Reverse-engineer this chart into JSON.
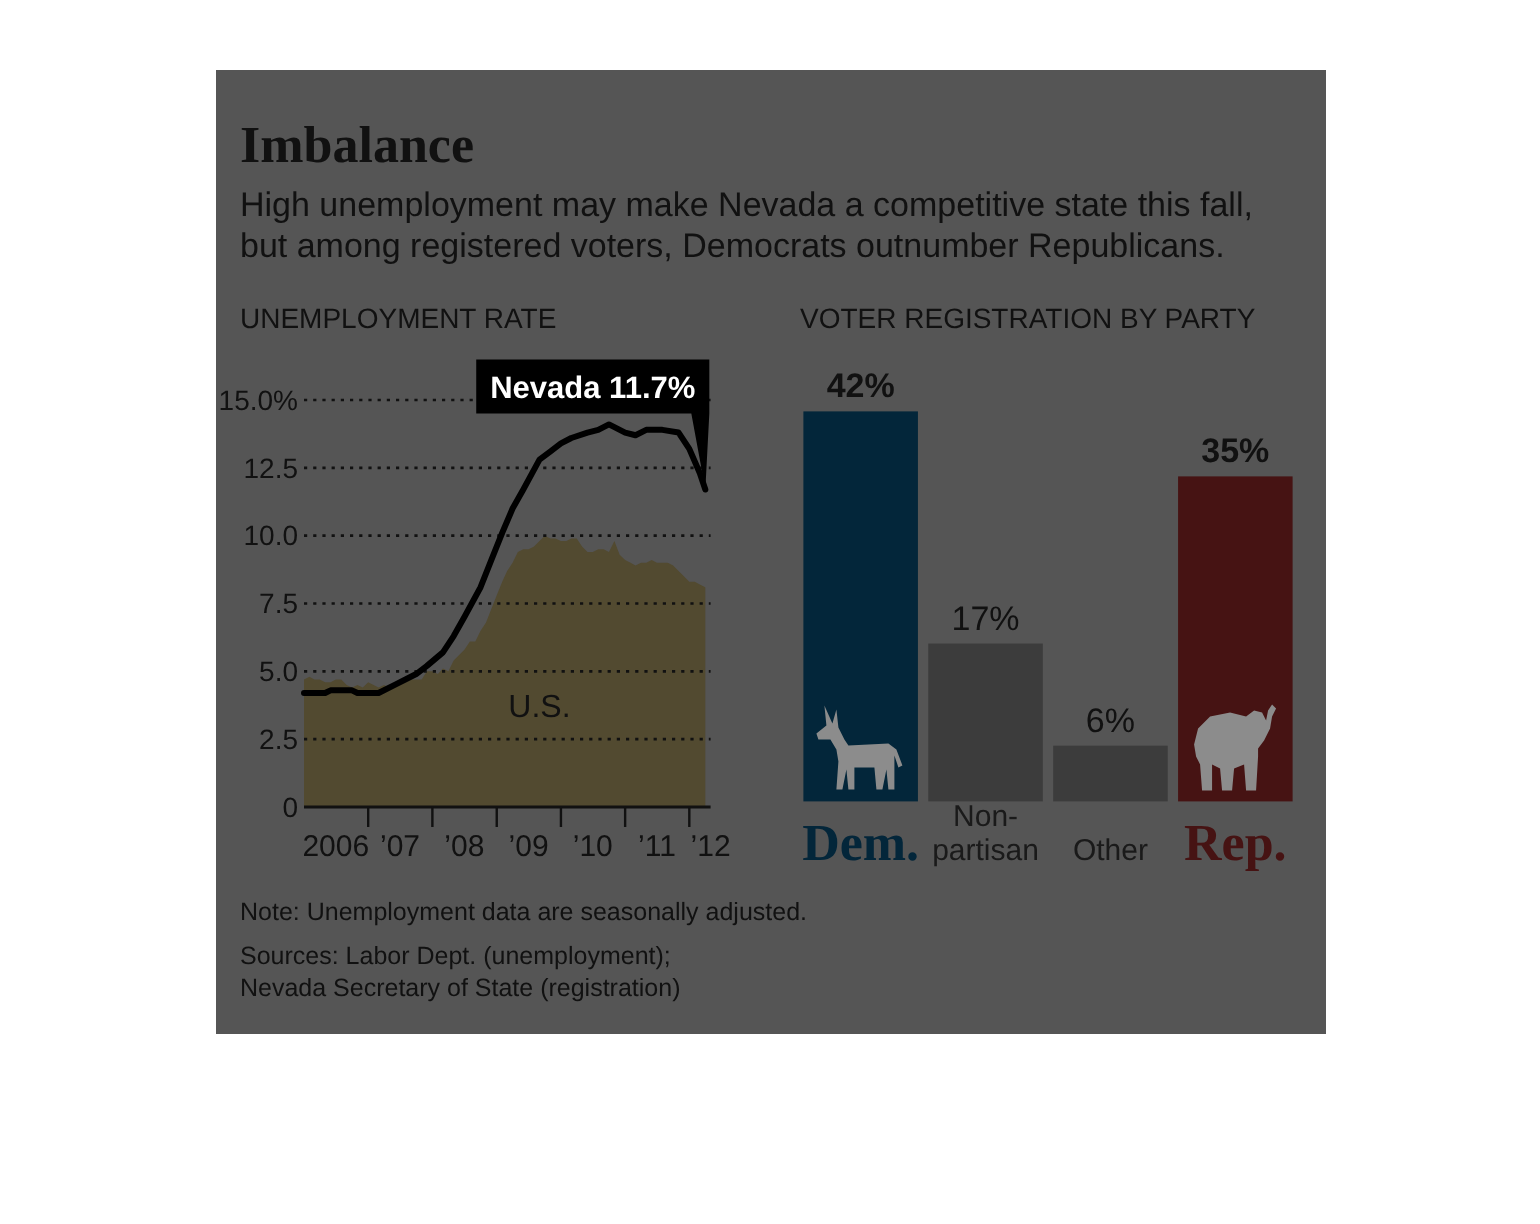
{
  "chart_data": [
    {
      "type": "other",
      "title": "Imbalance",
      "subtitle": "High unemployment may make Nevada a competitive state this fall, but among registered voters, Democrats outnumber Republicans.",
      "annotations": [
        "Note: Unemployment data are seasonally adjusted.",
        "Sources: Labor Dept. (unemployment);",
        "Nevada Secretary of State (registration)"
      ]
    },
    {
      "type": "line",
      "title": "UNEMPLOYMENT RATE",
      "xlim": [
        "2006-01",
        "2012-05"
      ],
      "xticks": [
        {
          "value": "2006-07",
          "label": "2006"
        },
        {
          "value": "2007-01",
          "label": null
        },
        {
          "value": "2007-07",
          "label": "’07"
        },
        {
          "value": "2008-01",
          "label": null
        },
        {
          "value": "2008-07",
          "label": "’08"
        },
        {
          "value": "2009-01",
          "label": null
        },
        {
          "value": "2009-07",
          "label": "’09"
        },
        {
          "value": "2010-01",
          "label": null
        },
        {
          "value": "2010-07",
          "label": "’10"
        },
        {
          "value": "2011-01",
          "label": null
        },
        {
          "value": "2011-07",
          "label": "’11"
        },
        {
          "value": "2012-01",
          "label": null
        },
        {
          "value": "2012-05",
          "label": "’12"
        }
      ],
      "ylim": [
        0,
        15
      ],
      "yticks": [
        0,
        2.5,
        {
          "value": 5,
          "label": "5.0"
        },
        7.5,
        {
          "value": 10,
          "label": "10.0"
        },
        12.5,
        {
          "value": 15,
          "label": "15.0%"
        }
      ],
      "grid": "y",
      "series": [
        {
          "name": "U.S.",
          "type": "area",
          "color": "#524a30",
          "x": [
            "2006-01",
            "2006-02",
            "2006-03",
            "2006-04",
            "2006-05",
            "2006-06",
            "2006-07",
            "2006-08",
            "2006-09",
            "2006-10",
            "2006-11",
            "2006-12",
            "2007-01",
            "2007-02",
            "2007-03",
            "2007-04",
            "2007-05",
            "2007-06",
            "2007-07",
            "2007-08",
            "2007-09",
            "2007-10",
            "2007-11",
            "2007-12",
            "2008-01",
            "2008-02",
            "2008-03",
            "2008-04",
            "2008-05",
            "2008-06",
            "2008-07",
            "2008-08",
            "2008-09",
            "2008-10",
            "2008-11",
            "2008-12",
            "2009-01",
            "2009-02",
            "2009-03",
            "2009-04",
            "2009-05",
            "2009-06",
            "2009-07",
            "2009-08",
            "2009-09",
            "2009-10",
            "2009-11",
            "2009-12",
            "2010-01",
            "2010-02",
            "2010-03",
            "2010-04",
            "2010-05",
            "2010-06",
            "2010-07",
            "2010-08",
            "2010-09",
            "2010-10",
            "2010-11",
            "2010-12",
            "2011-01",
            "2011-02",
            "2011-03",
            "2011-04",
            "2011-05",
            "2011-06",
            "2011-07",
            "2011-08",
            "2011-09",
            "2011-10",
            "2011-11",
            "2011-12",
            "2012-01",
            "2012-02",
            "2012-03",
            "2012-04"
          ],
          "values": [
            4.7,
            4.8,
            4.7,
            4.7,
            4.6,
            4.6,
            4.7,
            4.7,
            4.5,
            4.4,
            4.5,
            4.4,
            4.6,
            4.5,
            4.4,
            4.5,
            4.4,
            4.6,
            4.7,
            4.6,
            4.7,
            4.7,
            4.7,
            5.0,
            5.0,
            4.9,
            5.1,
            5.0,
            5.4,
            5.6,
            5.8,
            6.1,
            6.1,
            6.5,
            6.8,
            7.3,
            7.8,
            8.3,
            8.7,
            9.0,
            9.4,
            9.5,
            9.5,
            9.6,
            9.8,
            10.0,
            9.9,
            9.9,
            9.8,
            9.8,
            9.9,
            9.9,
            9.6,
            9.4,
            9.4,
            9.5,
            9.5,
            9.4,
            9.8,
            9.3,
            9.1,
            9.0,
            8.9,
            9.0,
            9.0,
            9.1,
            9.0,
            9.0,
            9.0,
            8.9,
            8.7,
            8.5,
            8.3,
            8.3,
            8.2,
            8.1
          ]
        },
        {
          "type": "line",
          "color": "#000000",
          "x": [
            "2006-01",
            "2006-05",
            "2006-06",
            "2006-10",
            "2006-11",
            "2007-03",
            "2007-06",
            "2007-10",
            "2007-12",
            "2008-03",
            "2008-05",
            "2008-07",
            "2008-10",
            "2008-12",
            "2009-02",
            "2009-04",
            "2009-06",
            "2009-09",
            "2009-11",
            "2010-01",
            "2010-03",
            "2010-06",
            "2010-08",
            "2010-10",
            "2010-11",
            "2011-01",
            "2011-03",
            "2011-05",
            "2011-08",
            "2011-11",
            "2012-01",
            "2012-03",
            "2012-04"
          ],
          "values": [
            4.2,
            4.2,
            4.3,
            4.3,
            4.2,
            4.2,
            4.5,
            4.9,
            5.2,
            5.7,
            6.3,
            7.0,
            8.1,
            9.1,
            10.1,
            11.0,
            11.7,
            12.8,
            13.1,
            13.4,
            13.6,
            13.8,
            13.9,
            14.1,
            14.0,
            13.8,
            13.7,
            13.9,
            13.9,
            13.8,
            13.2,
            12.3,
            11.7
          ]
        }
      ],
      "annotations": [
        {
          "text": "Nevada 11.7%",
          "x": "2012-04",
          "y": 11.7
        }
      ]
    },
    {
      "type": "bar",
      "title": "VOTER REGISTRATION BY PARTY",
      "categories": [
        "Dem.",
        "Non-partisan",
        "Other",
        "Rep."
      ],
      "values": [
        42,
        17,
        6,
        35
      ],
      "colors": [
        "#03263a",
        "#3c3c3c",
        "#3c3c3c",
        "#461313"
      ],
      "value_labels": [
        "42%",
        "17%",
        "6%",
        "35%"
      ]
    }
  ]
}
